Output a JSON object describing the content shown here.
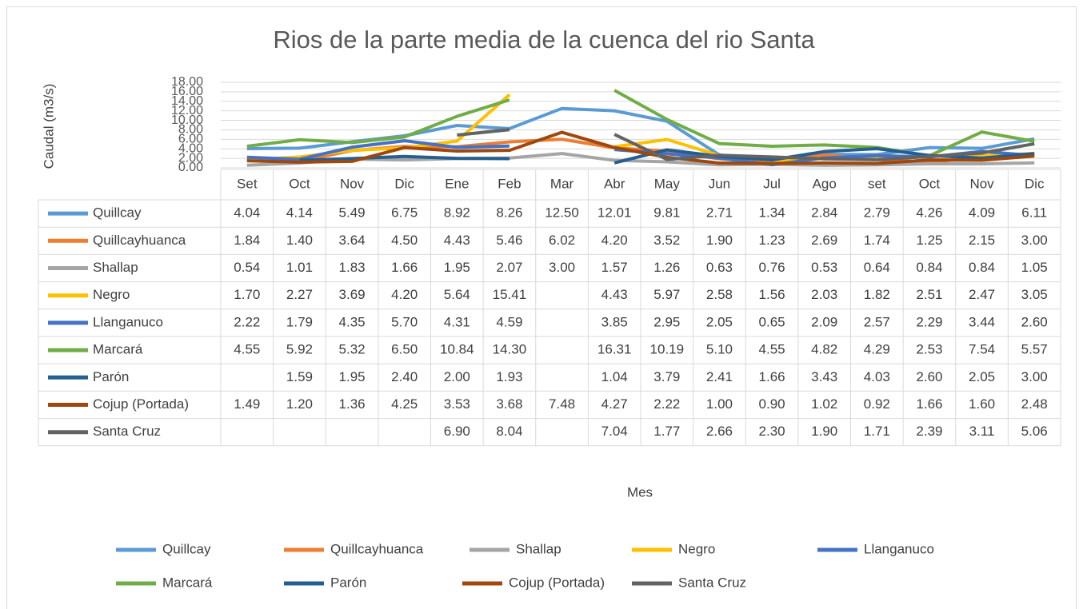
{
  "chart_data": {
    "type": "line",
    "title": "Rios de la parte media de la cuenca del rio Santa",
    "x_label": "Mes",
    "y_label": "Caudal (m3/s)",
    "categories": [
      "Set",
      "Oct",
      "Nov",
      "Dic",
      "Ene",
      "Feb",
      "Mar",
      "Abr",
      "May",
      "Jun",
      "Jul",
      "Ago",
      "set",
      "Oct",
      "Nov",
      "Dic"
    ],
    "ylim": [
      0,
      18
    ],
    "yticks": [
      {
        "value": 0,
        "label": "0.00"
      },
      {
        "value": 2,
        "label": "2.00"
      },
      {
        "value": 4,
        "label": "4.00"
      },
      {
        "value": 6,
        "label": "6.00"
      },
      {
        "value": 8,
        "label": "8.00"
      },
      {
        "value": 10,
        "label": "10.00"
      },
      {
        "value": 12,
        "label": "12.00"
      },
      {
        "value": 14,
        "label": "14.00"
      },
      {
        "value": 16,
        "label": "16.00"
      },
      {
        "value": 18,
        "label": "18.00"
      }
    ],
    "grid": true,
    "legend": "bottom",
    "series": [
      {
        "name": "Quillcay",
        "color": "#5b9bd5",
        "values": [
          4.04,
          4.14,
          5.49,
          6.75,
          8.92,
          8.26,
          12.5,
          12.01,
          9.81,
          2.71,
          1.34,
          2.84,
          2.79,
          4.26,
          4.09,
          6.11
        ],
        "value_labels": [
          "4.04",
          "4.14",
          "5.49",
          "6.75",
          "8.92",
          "8.26",
          "12.50",
          "12.01",
          "9.81",
          "2.71",
          "1.34",
          "2.84",
          "2.79",
          "4.26",
          "4.09",
          "6.11"
        ]
      },
      {
        "name": "Quillcayhuanca",
        "color": "#ed7d31",
        "values": [
          1.84,
          1.4,
          3.64,
          4.5,
          4.43,
          5.46,
          6.02,
          4.2,
          3.52,
          1.9,
          1.23,
          2.69,
          1.74,
          1.25,
          2.15,
          3.0
        ],
        "value_labels": [
          "1.84",
          "1.40",
          "3.64",
          "4.50",
          "4.43",
          "5.46",
          "6.02",
          "4.20",
          "3.52",
          "1.90",
          "1.23",
          "2.69",
          "1.74",
          "1.25",
          "2.15",
          "3.00"
        ]
      },
      {
        "name": "Shallap",
        "color": "#a5a5a5",
        "values": [
          0.54,
          1.01,
          1.83,
          1.66,
          1.95,
          2.07,
          3.0,
          1.57,
          1.26,
          0.63,
          0.76,
          0.53,
          0.64,
          0.84,
          0.84,
          1.05
        ],
        "value_labels": [
          "0.54",
          "1.01",
          "1.83",
          "1.66",
          "1.95",
          "2.07",
          "3.00",
          "1.57",
          "1.26",
          "0.63",
          "0.76",
          "0.53",
          "0.64",
          "0.84",
          "0.84",
          "1.05"
        ]
      },
      {
        "name": "Negro",
        "color": "#ffc000",
        "values": [
          1.7,
          2.27,
          3.69,
          4.2,
          5.64,
          15.41,
          null,
          4.43,
          5.97,
          2.58,
          1.56,
          2.03,
          1.82,
          2.51,
          2.47,
          3.05
        ],
        "value_labels": [
          "1.70",
          "2.27",
          "3.69",
          "4.20",
          "5.64",
          "15.41",
          null,
          "4.43",
          "5.97",
          "2.58",
          "1.56",
          "2.03",
          "1.82",
          "2.51",
          "2.47",
          "3.05"
        ]
      },
      {
        "name": "Llanganuco",
        "color": "#4472c4",
        "values": [
          2.22,
          1.79,
          4.35,
          5.7,
          4.31,
          4.59,
          null,
          3.85,
          2.95,
          2.05,
          0.65,
          2.09,
          2.57,
          2.29,
          3.44,
          2.6
        ],
        "value_labels": [
          "2.22",
          "1.79",
          "4.35",
          "5.70",
          "4.31",
          "4.59",
          null,
          "3.85",
          "2.95",
          "2.05",
          "0.65",
          "2.09",
          "2.57",
          "2.29",
          "3.44",
          "2.60"
        ]
      },
      {
        "name": "Marcará",
        "color": "#70ad47",
        "values": [
          4.55,
          5.92,
          5.32,
          6.5,
          10.84,
          14.3,
          null,
          16.31,
          10.19,
          5.1,
          4.55,
          4.82,
          4.29,
          2.53,
          7.54,
          5.57
        ],
        "value_labels": [
          "4.55",
          "5.92",
          "5.32",
          "6.50",
          "10.84",
          "14.30",
          null,
          "16.31",
          "10.19",
          "5.10",
          "4.55",
          "4.82",
          "4.29",
          "2.53",
          "7.54",
          "5.57"
        ]
      },
      {
        "name": "Parón",
        "color": "#255e91",
        "values": [
          null,
          1.59,
          1.95,
          2.4,
          2.0,
          1.93,
          null,
          1.04,
          3.79,
          2.41,
          1.66,
          3.43,
          4.03,
          2.6,
          2.05,
          3.0
        ],
        "value_labels": [
          null,
          "1.59",
          "1.95",
          "2.40",
          "2.00",
          "1.93",
          null,
          "1.04",
          "3.79",
          "2.41",
          "1.66",
          "3.43",
          "4.03",
          "2.60",
          "2.05",
          "3.00"
        ]
      },
      {
        "name": "Cojup (Portada)",
        "color": "#9e480e",
        "values": [
          1.49,
          1.2,
          1.36,
          4.25,
          3.53,
          3.68,
          7.48,
          4.27,
          2.22,
          1.0,
          0.9,
          1.02,
          0.92,
          1.66,
          1.6,
          2.48
        ],
        "value_labels": [
          "1.49",
          "1.20",
          "1.36",
          "4.25",
          "3.53",
          "3.68",
          "7.48",
          "4.27",
          "2.22",
          "1.00",
          "0.90",
          "1.02",
          "0.92",
          "1.66",
          "1.60",
          "2.48"
        ]
      },
      {
        "name": "Santa Cruz",
        "color": "#636363",
        "values": [
          null,
          null,
          null,
          null,
          6.9,
          8.04,
          null,
          7.04,
          1.77,
          2.66,
          2.3,
          1.9,
          1.71,
          2.39,
          3.11,
          5.06
        ],
        "value_labels": [
          null,
          null,
          null,
          null,
          "6.90",
          "8.04",
          null,
          "7.04",
          "1.77",
          "2.66",
          "2.30",
          "1.90",
          "1.71",
          "2.39",
          "3.11",
          "5.06"
        ]
      }
    ]
  }
}
